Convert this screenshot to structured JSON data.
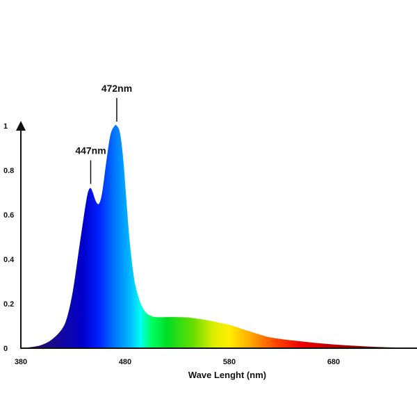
{
  "chart_data": {
    "type": "area",
    "title": "",
    "xlabel": "Wave Lenght (nm)",
    "ylabel": "",
    "xlim": [
      380,
      760
    ],
    "ylim": [
      0,
      1
    ],
    "x_ticks": [
      "380",
      "480",
      "580",
      "680"
    ],
    "y_ticks": [
      "0",
      "0.2",
      "0.4",
      "0.6",
      "0.8",
      "1"
    ],
    "grid": false,
    "fill": "visible-spectrum gradient",
    "annotations": [
      {
        "text": "447nm",
        "x": 447,
        "y": 0.72
      },
      {
        "text": "472nm",
        "x": 472,
        "y": 1.0
      }
    ],
    "series": [
      {
        "x": [
          380,
          390,
          400,
          410,
          420,
          425,
          430,
          435,
          440,
          443,
          445,
          447,
          449,
          452,
          455,
          458,
          462,
          466,
          470,
          472,
          475,
          478,
          481,
          484,
          487,
          490,
          495,
          500,
          505,
          510,
          520,
          530,
          540,
          550,
          560,
          570,
          580,
          590,
          600,
          610,
          620,
          640,
          660,
          680,
          700,
          720,
          740,
          760
        ],
        "y": [
          0.0,
          0.005,
          0.015,
          0.04,
          0.09,
          0.15,
          0.26,
          0.42,
          0.58,
          0.67,
          0.71,
          0.72,
          0.7,
          0.66,
          0.65,
          0.7,
          0.84,
          0.96,
          1.0,
          1.0,
          0.97,
          0.86,
          0.68,
          0.5,
          0.37,
          0.28,
          0.2,
          0.16,
          0.145,
          0.14,
          0.14,
          0.14,
          0.138,
          0.132,
          0.125,
          0.115,
          0.105,
          0.09,
          0.075,
          0.06,
          0.048,
          0.035,
          0.025,
          0.017,
          0.011,
          0.006,
          0.003,
          0.001
        ]
      }
    ]
  },
  "colors": {
    "axis": "#111111",
    "spectrum_stops": [
      {
        "nm": 380,
        "color": "#2a0a4a"
      },
      {
        "nm": 410,
        "color": "#1a0a8c"
      },
      {
        "nm": 440,
        "color": "#0000cc"
      },
      {
        "nm": 455,
        "color": "#0022ff"
      },
      {
        "nm": 470,
        "color": "#0077ff"
      },
      {
        "nm": 485,
        "color": "#00bbff"
      },
      {
        "nm": 495,
        "color": "#00ffee"
      },
      {
        "nm": 505,
        "color": "#00ff66"
      },
      {
        "nm": 520,
        "color": "#00dd22"
      },
      {
        "nm": 545,
        "color": "#66dd00"
      },
      {
        "nm": 565,
        "color": "#ddee00"
      },
      {
        "nm": 580,
        "color": "#ffee00"
      },
      {
        "nm": 600,
        "color": "#ffaa00"
      },
      {
        "nm": 625,
        "color": "#ff4400"
      },
      {
        "nm": 650,
        "color": "#ee0000"
      },
      {
        "nm": 700,
        "color": "#990000"
      },
      {
        "nm": 760,
        "color": "#330000"
      }
    ]
  }
}
